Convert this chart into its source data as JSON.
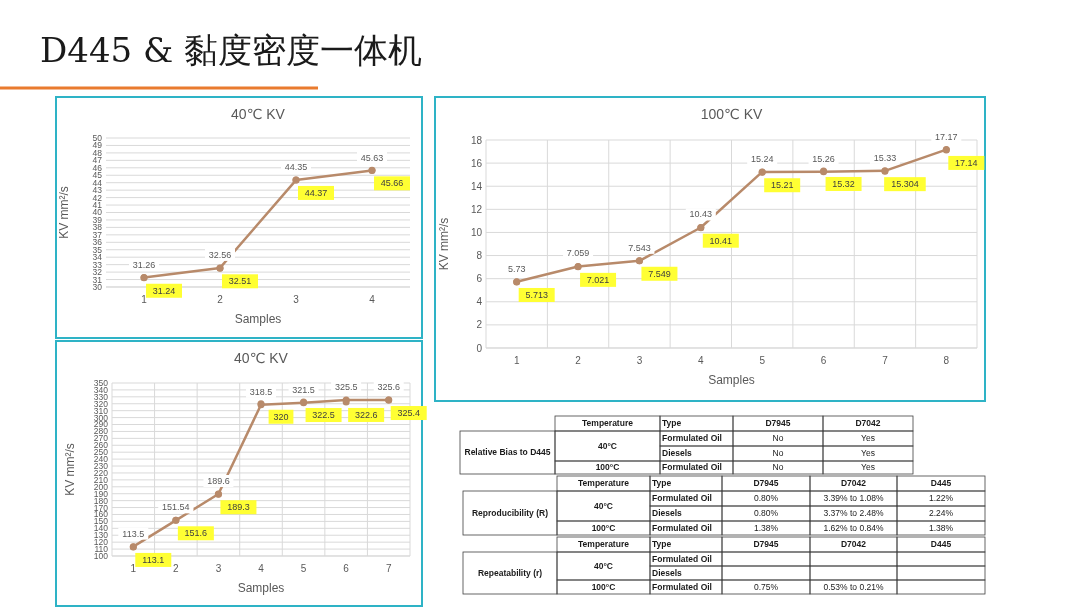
{
  "chart_data": [
    {
      "type": "other",
      "title": "D445 & 黏度密度一体机"
    },
    {
      "type": "line",
      "title": "40℃ KV",
      "xlabel": "Samples",
      "ylabel": "KV mm²/s",
      "categories": [
        "1",
        "2",
        "3",
        "4"
      ],
      "ylim": [
        30,
        50
      ],
      "yticks": [
        30,
        31,
        32,
        33,
        34,
        35,
        36,
        37,
        38,
        39,
        40,
        41,
        42,
        43,
        44,
        45,
        46,
        47,
        48,
        49,
        50
      ],
      "grid": "y",
      "marker": "circle",
      "data_labels": true,
      "series": [
        {
          "color": "#b88a6a",
          "values": [
            31.26,
            32.56,
            44.35,
            45.63
          ]
        },
        {
          "type": "scatter",
          "color": "#b88a6a",
          "values": [
            31.24,
            32.51,
            44.37,
            45.66
          ]
        }
      ]
    },
    {
      "type": "line",
      "title": "100℃ KV",
      "xlabel": "Samples",
      "ylabel": "KV mm²/s",
      "categories": [
        "1",
        "2",
        "3",
        "4",
        "5",
        "6",
        "7",
        "8"
      ],
      "ylim": [
        0,
        18
      ],
      "yticks": [
        0,
        2,
        4,
        6,
        8,
        10,
        12,
        14,
        16,
        18
      ],
      "grid": true,
      "marker": "circle",
      "data_labels": true,
      "series": [
        {
          "color": "#b88a6a",
          "values": [
            5.73,
            7.059,
            7.543,
            10.43,
            15.24,
            15.26,
            15.33,
            17.17
          ]
        },
        {
          "type": "scatter",
          "color": "#b88a6a",
          "values": [
            5.713,
            7.021,
            7.549,
            10.41,
            15.21,
            15.32,
            15.304,
            17.14
          ]
        }
      ]
    },
    {
      "type": "line",
      "title": "40℃ KV",
      "xlabel": "Samples",
      "ylabel": "KV mm²/s",
      "categories": [
        "1",
        "2",
        "3",
        "4",
        "5",
        "6",
        "7"
      ],
      "ylim": [
        100,
        350
      ],
      "yticks": [
        100,
        110,
        120,
        130,
        140,
        150,
        160,
        170,
        180,
        190,
        200,
        210,
        220,
        230,
        240,
        250,
        260,
        270,
        280,
        290,
        300,
        310,
        320,
        330,
        340,
        350
      ],
      "grid": true,
      "marker": "circle",
      "data_labels": true,
      "series": [
        {
          "color": "#b88a6a",
          "values": [
            113.5,
            151.54,
            189.6,
            318.5,
            321.5,
            325.5,
            325.6
          ]
        },
        {
          "type": "scatter",
          "color": "#b88a6a",
          "values": [
            113.1,
            151.6,
            189.3,
            320,
            322.5,
            322.6,
            325.4
          ]
        }
      ]
    },
    {
      "type": "other",
      "categories": [
        "Temperature",
        "Type",
        "D7945",
        "D7042"
      ],
      "y_categories": [
        "Relative Bias to D445"
      ],
      "cell_labels": [
        [
          "40°C",
          "Formulated Oil",
          "No",
          "Yes"
        ],
        [
          null,
          "Diesels",
          "No",
          "Yes"
        ],
        [
          "100°C",
          "Formulated Oil",
          "No",
          "Yes"
        ]
      ]
    },
    {
      "type": "other",
      "categories": [
        "Temperature",
        "Type",
        "D7945",
        "D7042",
        "D445"
      ],
      "y_categories": [
        "Reproducibility (R)"
      ],
      "cell_labels": [
        [
          "40°C",
          "Formulated Oil",
          "0.80%",
          "3.39% to 1.08%",
          "1.22%"
        ],
        [
          null,
          "Diesels",
          "0.80%",
          "3.37% to 2.48%",
          "2.24%"
        ],
        [
          "100°C",
          "Formulated Oil",
          "1.38%",
          "1.62% to 0.84%",
          "1.38%"
        ]
      ]
    },
    {
      "type": "other",
      "categories": [
        "Temperature",
        "Type",
        "D7945",
        "D7042",
        "D445"
      ],
      "y_categories": [
        "Repeatability (r)"
      ],
      "cell_labels": [
        [
          "40°C",
          "Formulated Oil",
          null,
          null,
          null
        ],
        [
          null,
          "Diesels",
          null,
          null,
          null
        ],
        [
          "100°C",
          "Formulated Oil",
          "0.75%",
          "0.53% to 0.21%",
          null
        ]
      ]
    }
  ]
}
